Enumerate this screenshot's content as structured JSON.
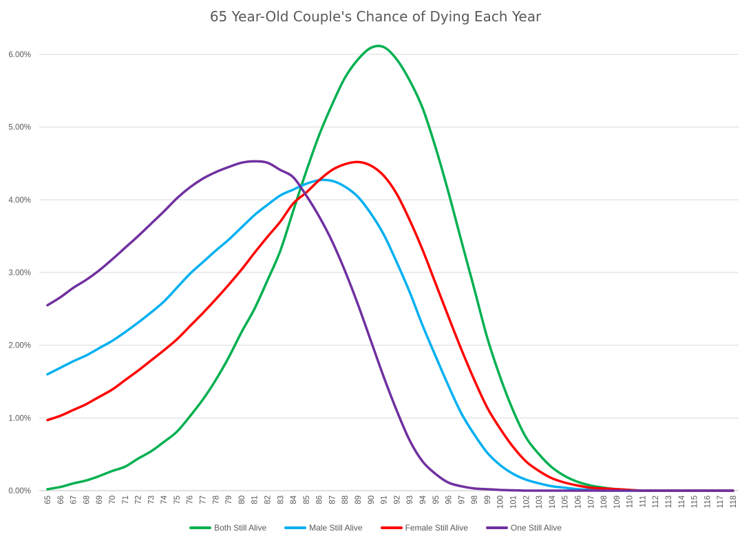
{
  "chart_data": {
    "type": "line",
    "title": "65 Year-Old Couple's Chance of Dying Each Year",
    "xlabel": "",
    "ylabel": "",
    "ylim": [
      0,
      6
    ],
    "y_ticks": [
      "0.00%",
      "1.00%",
      "2.00%",
      "3.00%",
      "4.00%",
      "5.00%",
      "6.00%"
    ],
    "grid": true,
    "legend_position": "bottom",
    "x": [
      65,
      66,
      67,
      68,
      69,
      70,
      71,
      72,
      73,
      74,
      75,
      76,
      77,
      78,
      79,
      80,
      81,
      82,
      83,
      84,
      85,
      86,
      87,
      88,
      89,
      90,
      91,
      92,
      93,
      94,
      95,
      96,
      97,
      98,
      99,
      100,
      101,
      102,
      103,
      104,
      105,
      106,
      107,
      108,
      109,
      110,
      111,
      112,
      113,
      114,
      115,
      116,
      117,
      118
    ],
    "series": [
      {
        "name": "Both Still Alive",
        "color": "#00B050",
        "values": [
          0.02,
          0.05,
          0.1,
          0.14,
          0.2,
          0.27,
          0.33,
          0.44,
          0.54,
          0.67,
          0.81,
          1.02,
          1.25,
          1.52,
          1.83,
          2.18,
          2.5,
          2.89,
          3.3,
          3.85,
          4.39,
          4.89,
          5.31,
          5.68,
          5.93,
          6.09,
          6.1,
          5.93,
          5.64,
          5.26,
          4.72,
          4.1,
          3.43,
          2.77,
          2.1,
          1.56,
          1.1,
          0.73,
          0.5,
          0.32,
          0.2,
          0.12,
          0.07,
          0.04,
          0.02,
          0.01,
          0,
          0,
          0,
          0,
          0,
          0,
          0,
          0
        ]
      },
      {
        "name": "Male Still Alive",
        "color": "#00B0F0",
        "values": [
          1.6,
          1.69,
          1.78,
          1.86,
          1.96,
          2.06,
          2.18,
          2.31,
          2.45,
          2.6,
          2.79,
          2.98,
          3.14,
          3.3,
          3.45,
          3.62,
          3.79,
          3.93,
          4.06,
          4.14,
          4.22,
          4.27,
          4.26,
          4.18,
          4.04,
          3.81,
          3.52,
          3.14,
          2.73,
          2.27,
          1.85,
          1.44,
          1.06,
          0.77,
          0.52,
          0.35,
          0.23,
          0.15,
          0.1,
          0.06,
          0.04,
          0.02,
          0.01,
          0,
          0,
          0,
          0,
          0,
          0,
          0,
          0,
          0,
          0,
          0
        ]
      },
      {
        "name": "Female Still Alive",
        "color": "#FF0000",
        "values": [
          0.97,
          1.03,
          1.11,
          1.19,
          1.29,
          1.39,
          1.52,
          1.65,
          1.79,
          1.93,
          2.08,
          2.26,
          2.44,
          2.63,
          2.83,
          3.04,
          3.27,
          3.49,
          3.7,
          3.95,
          4.1,
          4.27,
          4.41,
          4.49,
          4.52,
          4.47,
          4.33,
          4.08,
          3.72,
          3.31,
          2.85,
          2.39,
          1.94,
          1.52,
          1.14,
          0.85,
          0.6,
          0.4,
          0.27,
          0.17,
          0.11,
          0.07,
          0.04,
          0.03,
          0.02,
          0.01,
          0,
          0,
          0,
          0,
          0,
          0,
          0,
          0
        ]
      },
      {
        "name": "One Still Alive",
        "color": "#7030A0",
        "values": [
          2.55,
          2.66,
          2.79,
          2.9,
          3.03,
          3.18,
          3.34,
          3.5,
          3.67,
          3.84,
          4.02,
          4.17,
          4.29,
          4.38,
          4.45,
          4.51,
          4.53,
          4.51,
          4.41,
          4.31,
          4.06,
          3.77,
          3.43,
          3.02,
          2.56,
          2.06,
          1.56,
          1.1,
          0.69,
          0.4,
          0.23,
          0.11,
          0.06,
          0.03,
          0.02,
          0.01,
          0.005,
          0,
          0,
          0,
          0,
          0,
          0,
          0,
          0,
          0,
          0,
          0,
          0,
          0,
          0,
          0,
          0,
          0
        ]
      }
    ]
  }
}
